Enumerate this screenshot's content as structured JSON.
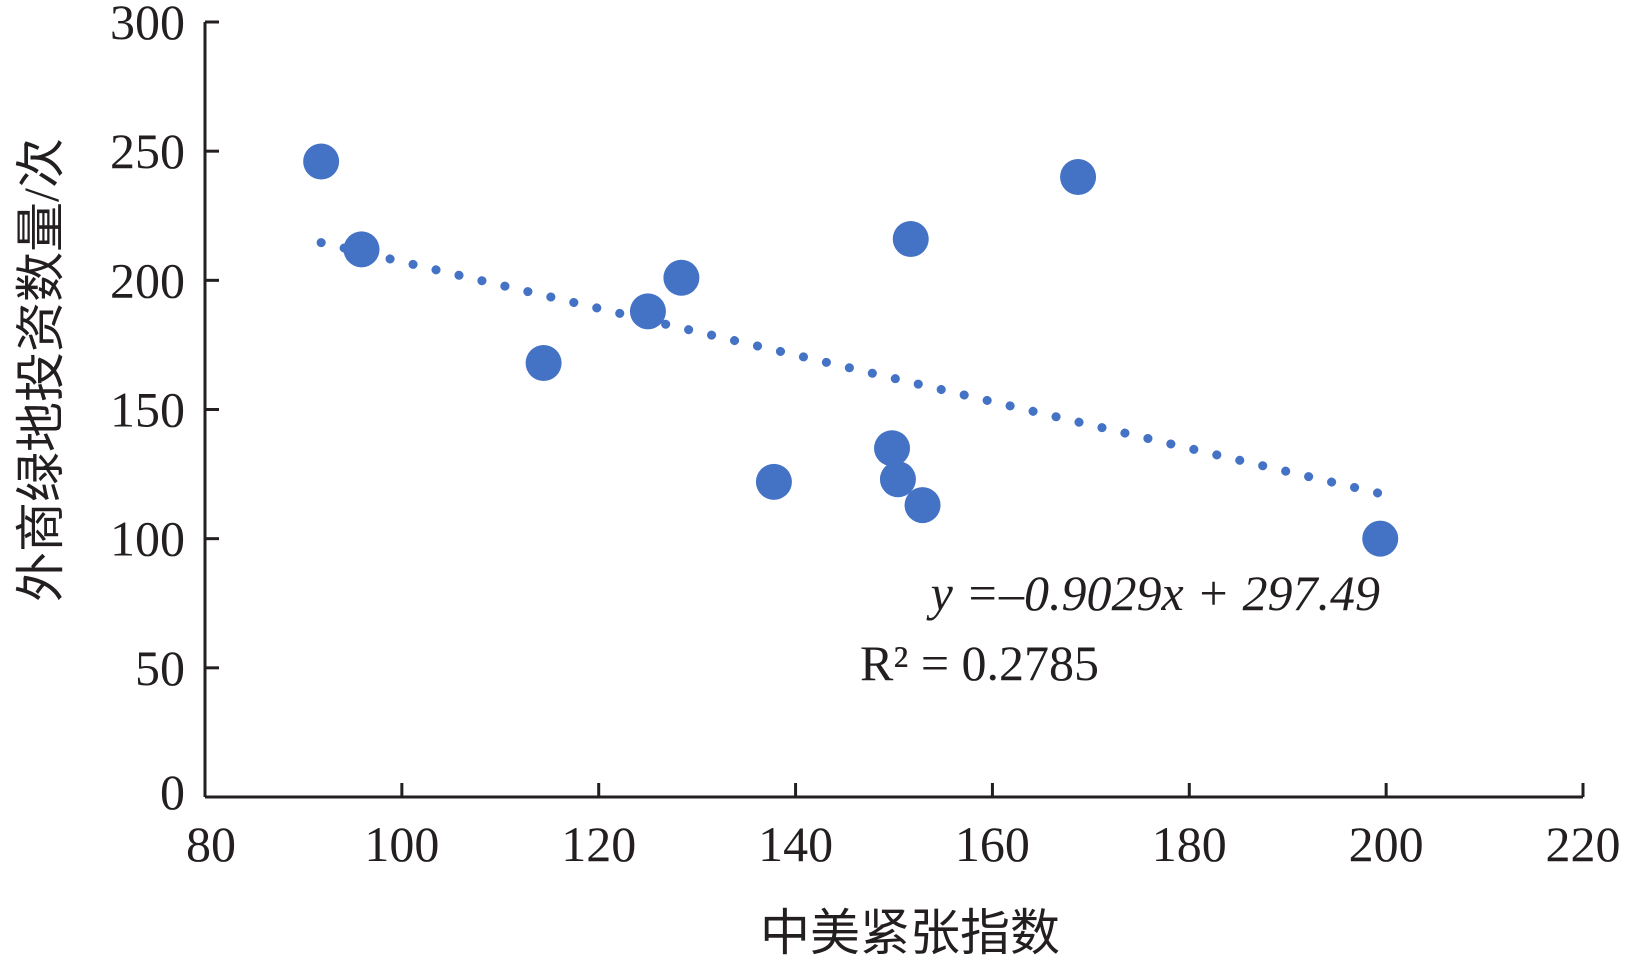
{
  "chart_data": {
    "type": "scatter",
    "title": "",
    "xlabel": "中美紧张指数",
    "ylabel": "外商绿地投资数量/次",
    "xlim": [
      80,
      220
    ],
    "ylim": [
      0,
      300
    ],
    "xticks": [
      80,
      100,
      120,
      140,
      160,
      180,
      200,
      220
    ],
    "yticks": [
      0,
      50,
      100,
      150,
      200,
      250,
      300
    ],
    "grid": false,
    "points": [
      {
        "x": 91.8,
        "y": 246
      },
      {
        "x": 95.9,
        "y": 212
      },
      {
        "x": 114.4,
        "y": 168
      },
      {
        "x": 125.0,
        "y": 188
      },
      {
        "x": 128.4,
        "y": 201
      },
      {
        "x": 137.8,
        "y": 122
      },
      {
        "x": 149.8,
        "y": 135
      },
      {
        "x": 150.4,
        "y": 123
      },
      {
        "x": 152.9,
        "y": 113
      },
      {
        "x": 151.7,
        "y": 216
      },
      {
        "x": 168.7,
        "y": 240
      },
      {
        "x": 199.4,
        "y": 100
      }
    ],
    "trendline": {
      "slope": -0.9029,
      "intercept": 297.49,
      "x_range": [
        91.8,
        199.4
      ],
      "style": "dotted"
    },
    "equation_text": "y =–0.9029x + 297.49",
    "r2_text": "R² = 0.2785",
    "marker_color": "#4472c4"
  }
}
